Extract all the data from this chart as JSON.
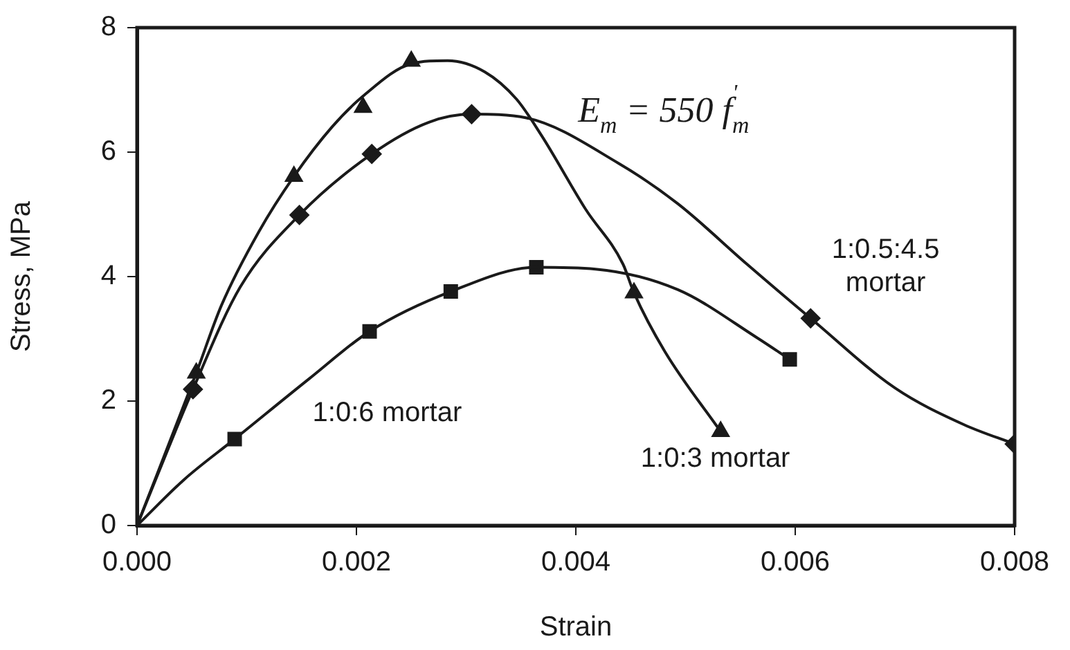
{
  "chart_data": {
    "type": "line",
    "xlabel": "Strain",
    "ylabel": "Stress, MPa",
    "xlim": [
      0,
      0.008
    ],
    "ylim": [
      0,
      8
    ],
    "xticks": [
      {
        "value": 0,
        "label": "0.000"
      },
      {
        "value": 0.002,
        "label": "0.002"
      },
      {
        "value": 0.004,
        "label": "0.004"
      },
      {
        "value": 0.006,
        "label": "0.006"
      },
      {
        "value": 0.008,
        "label": "0.008"
      }
    ],
    "yticks": [
      0,
      2,
      4,
      6,
      8
    ],
    "grid": false,
    "legend": false,
    "line_style": "solid",
    "series": [
      {
        "name": "1:0:3 mortar",
        "marker": "none",
        "color": "#1a1a1a",
        "x": [
          0,
          0.00054,
          0.00077,
          0.00111,
          0.00143,
          0.00178,
          0.00206,
          0.0025,
          0.00283,
          0.00317,
          0.00346,
          0.00369,
          0.00409,
          0.00443,
          0.00453,
          0.00481,
          0.00532
        ],
        "values": [
          0,
          2.45,
          3.54,
          4.72,
          5.61,
          6.41,
          6.9,
          7.42,
          7.47,
          7.29,
          6.85,
          6.26,
          5.08,
          4.2,
          3.74,
          2.8,
          1.51
        ]
      },
      {
        "type": "scatter",
        "marker": "triangle",
        "color": "#1a1a1a",
        "x": [
          0.00054,
          0.00143,
          0.00206,
          0.0025,
          0.00453,
          0.00532
        ],
        "values": [
          2.45,
          5.61,
          6.72,
          7.46,
          3.74,
          1.51
        ]
      },
      {
        "name": "1:0.5:4.5\nmortar",
        "marker": "none",
        "color": "#1a1a1a",
        "x": [
          0,
          0.00051,
          0.00094,
          0.00148,
          0.00214,
          0.00266,
          0.00305,
          0.00355,
          0.00439,
          0.00493,
          0.00556,
          0.00614,
          0.00691,
          0.00754,
          0.008
        ],
        "values": [
          0,
          2.19,
          3.83,
          4.99,
          5.97,
          6.48,
          6.61,
          6.55,
          5.82,
          5.17,
          4.2,
          3.33,
          2.21,
          1.62,
          1.31
        ]
      },
      {
        "type": "scatter",
        "marker": "diamond",
        "color": "#1a1a1a",
        "x": [
          0.00051,
          0.00148,
          0.00214,
          0.00305,
          0.00614,
          0.008
        ],
        "values": [
          2.19,
          4.99,
          5.97,
          6.61,
          3.33,
          1.31
        ]
      },
      {
        "name": "1:0:6 mortar",
        "marker": "none",
        "color": "#1a1a1a",
        "x": [
          0,
          0.00043,
          0.00089,
          0.00157,
          0.00212,
          0.00286,
          0.00364,
          0.00418,
          0.00493,
          0.00565,
          0.00595
        ],
        "values": [
          0,
          0.74,
          1.39,
          2.36,
          3.12,
          3.76,
          4.15,
          4.12,
          3.79,
          3.02,
          2.67
        ]
      },
      {
        "type": "scatter",
        "marker": "square",
        "color": "#1a1a1a",
        "x": [
          0.00089,
          0.00212,
          0.00286,
          0.00364,
          0.00595
        ],
        "values": [
          1.39,
          3.12,
          3.76,
          4.15,
          2.67
        ]
      }
    ],
    "annotations": [
      "E$_{m}$ = 550 f$^{'}$$_{m}$"
    ]
  }
}
